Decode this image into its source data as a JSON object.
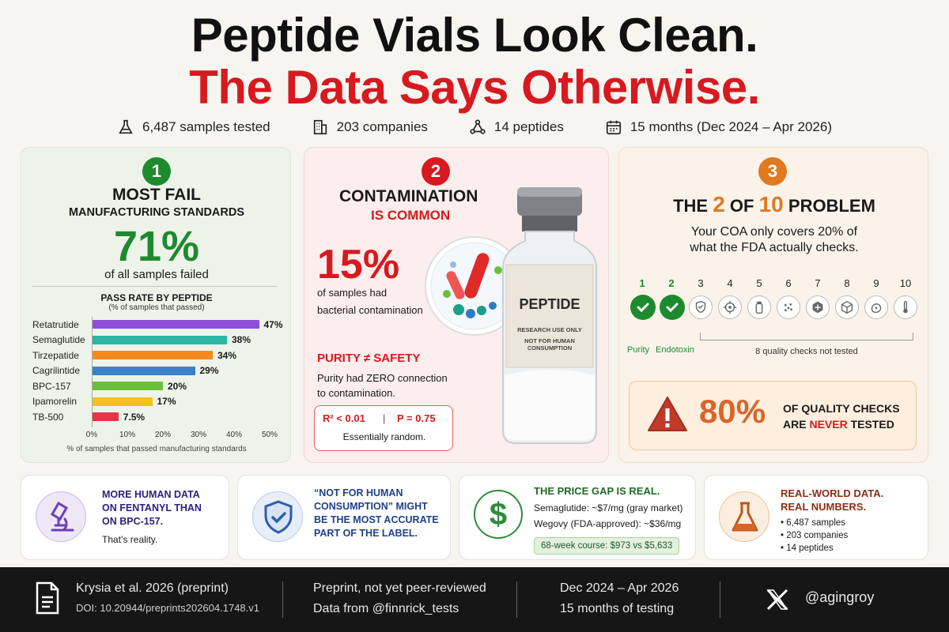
{
  "title_line1": "Peptide Vials Look Clean.",
  "title_line2": "The Data Says Otherwise.",
  "stats": {
    "samples": "6,487 samples tested",
    "companies": "203 companies",
    "peptides": "14 peptides",
    "period": "15 months (Dec 2024 – Apr 2026)"
  },
  "panel1": {
    "number": "1",
    "heading": "MOST FAIL",
    "subheading": "MANUFACTURING STANDARDS",
    "big": "71%",
    "big_caption": "of all samples failed",
    "chart_title": "PASS RATE BY PEPTIDE",
    "chart_subtitle": "(% of samples that passed)",
    "chart_xlabel": "% of samples that passed manufacturing standards"
  },
  "chart_data": {
    "type": "bar",
    "orientation": "horizontal",
    "title": "PASS RATE BY PEPTIDE",
    "subtitle": "(% of samples that passed)",
    "xlabel": "% of samples that passed manufacturing standards",
    "categories": [
      "Retatrutide",
      "Semaglutide",
      "Tirzepatide",
      "Cagrilintide",
      "BPC-157",
      "Ipamorelin",
      "TB-500"
    ],
    "values": [
      47,
      38,
      34,
      29,
      20,
      17,
      7.5
    ],
    "value_labels": [
      "47%",
      "38%",
      "34%",
      "29%",
      "20%",
      "17%",
      "7.5%"
    ],
    "colors": [
      "#8e4fd8",
      "#2bb7a3",
      "#f58a1f",
      "#3b82c9",
      "#6cbf3c",
      "#f3c11d",
      "#e8334a"
    ],
    "xlim": [
      0,
      50
    ],
    "ticks": [
      "0%",
      "10%",
      "20%",
      "30%",
      "40%",
      "50%"
    ]
  },
  "panel2": {
    "number": "2",
    "heading": "CONTAMINATION",
    "subheading": "IS COMMON",
    "big": "15%",
    "big_caption1": "of samples had",
    "big_caption2": "bacterial contamination",
    "purity_title": "PURITY ≠ SAFETY",
    "purity_text1": "Purity had ZERO connection",
    "purity_text2": "to contamination.",
    "r2": "R² < 0.01",
    "sep": "|",
    "p": "P = 0.75",
    "random": "Essentially random.",
    "vial_label": "PEPTIDE",
    "vial_sub1": "RESEARCH USE ONLY",
    "vial_sub2": "NOT FOR HUMAN CONSUMPTION"
  },
  "panel3": {
    "number": "3",
    "heading_pre": "THE",
    "heading_2": "2",
    "heading_of": "OF",
    "heading_10": "10",
    "heading_post": "PROBLEM",
    "line1": "Your COA only covers 20% of",
    "line2": "what the FDA actually checks.",
    "check_numbers": [
      "1",
      "2",
      "3",
      "4",
      "5",
      "6",
      "7",
      "8",
      "9",
      "10"
    ],
    "purity": "Purity",
    "endotoxin": "Endotoxin",
    "not_tested": "8 quality checks not tested",
    "warn_big": "80%",
    "warn_l1": "OF QUALITY CHECKS",
    "warn_l2a": "ARE ",
    "warn_l2b": "NEVER",
    "warn_l2c": " TESTED"
  },
  "card1": {
    "l1": "MORE HUMAN DATA",
    "l2": "ON FENTANYL THAN",
    "l3": "ON BPC-157.",
    "l4": "That’s reality."
  },
  "card2": {
    "l1": "“NOT FOR HUMAN",
    "l2": "CONSUMPTION” MIGHT",
    "l3": "BE THE MOST ACCURATE",
    "l4": "PART OF THE LABEL."
  },
  "card3": {
    "title": "THE PRICE GAP IS REAL.",
    "l1": "Semaglutide: ~$7/mg (gray market)",
    "l2": "Wegovy (FDA-approved): ~$36/mg",
    "pill": "68-week course: $973 vs $5,633"
  },
  "card4": {
    "title1": "REAL-WORLD DATA.",
    "title2": "REAL NUMBERS.",
    "b1": "6,487 samples",
    "b2": "203 companies",
    "b3": "14 peptides"
  },
  "footer": {
    "cite": "Krysia et al. 2026 (preprint)",
    "doi": "DOI: 10.20944/preprints202604.1748.v1",
    "pre1": "Preprint, not yet peer-reviewed",
    "pre2": "Data from @finnrick_tests",
    "date1": "Dec 2024 – Apr 2026",
    "date2": "15 months of testing",
    "handle": "@agingroy"
  }
}
